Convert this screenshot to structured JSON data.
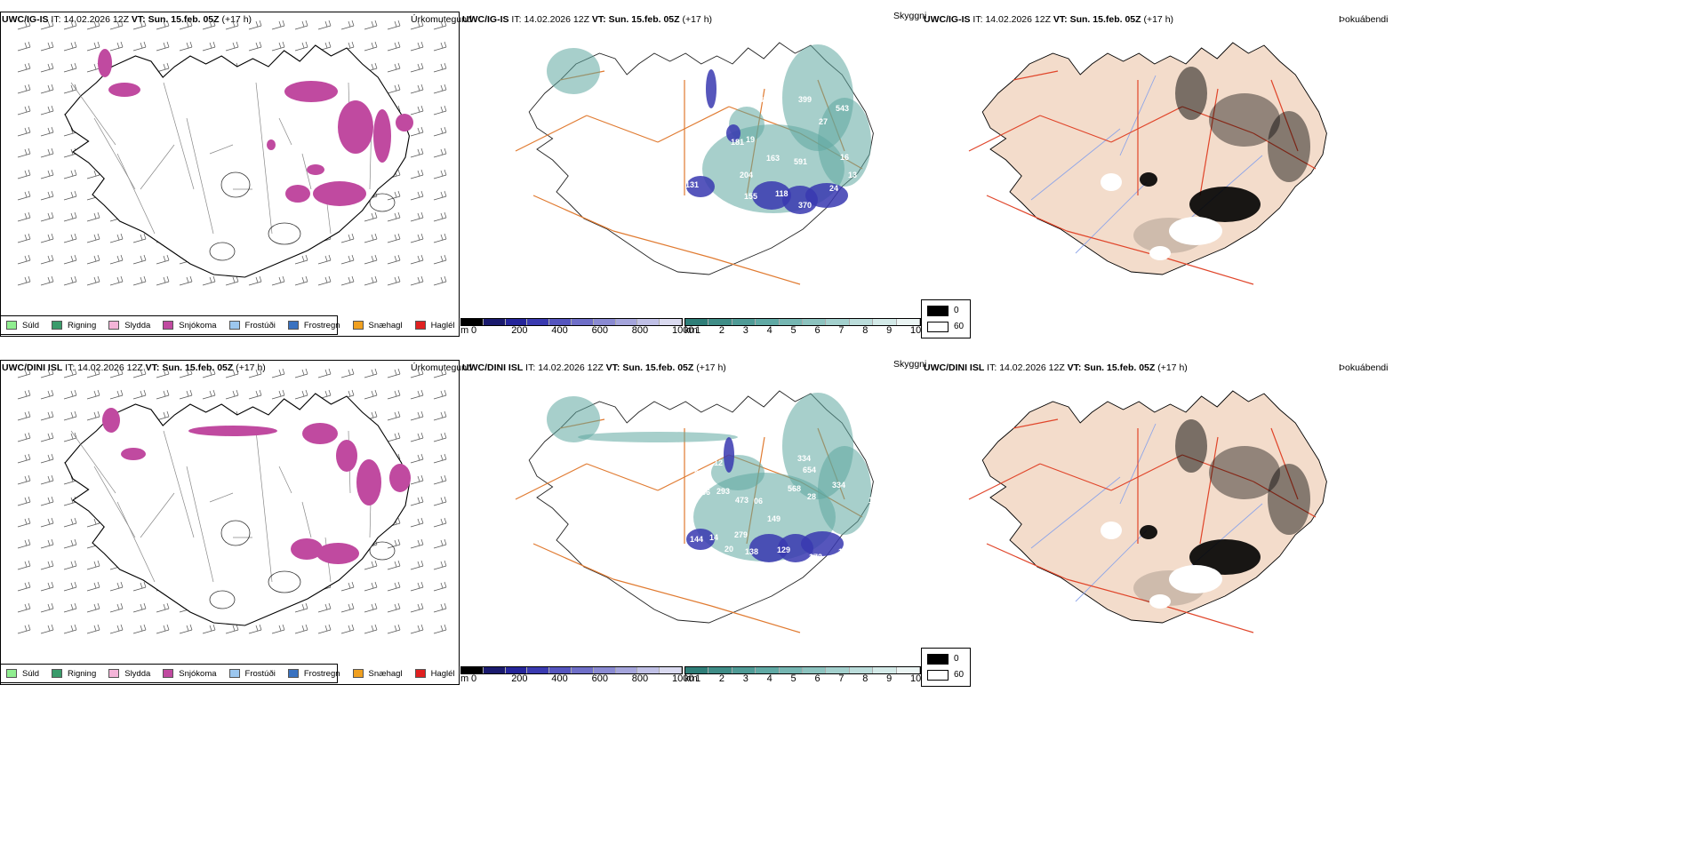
{
  "rows": [
    {
      "model": "UWC/IG-IS",
      "it_label": "IT:",
      "it_value": "14.02.2026 12Z",
      "vt_label": "VT:",
      "vt_value": "Sun. 15.feb. 05Z",
      "lead": "(+17 h)",
      "snow_labels": [
        "131",
        "155",
        "118",
        "370",
        "204",
        "181",
        "19",
        "163",
        "591",
        "399",
        "543",
        "27",
        "575",
        "36",
        "14",
        "24",
        "16",
        "13"
      ],
      "panel_titles": [
        "Úrkomutegund",
        "Skyggni",
        "Þokuábendi"
      ]
    },
    {
      "model": "UWC/DINI ISL",
      "it_label": "IT:",
      "it_value": "14.02.2026 12Z",
      "vt_label": "VT:",
      "vt_value": "Sun. 15.feb. 05Z",
      "lead": "(+17 h)",
      "snow_labels": [
        "144",
        "14",
        "138",
        "129",
        "172",
        "105",
        "293",
        "473",
        "06",
        "149",
        "279",
        "264",
        "334",
        "654",
        "568",
        "28",
        "334",
        "13",
        "466",
        "20",
        "12",
        "5"
      ],
      "panel_titles": [
        "Úrkomutegund",
        "Skyggni",
        "Þokuábendi"
      ]
    }
  ],
  "precip_legend": [
    {
      "label": "Súld",
      "color": "#90ee90"
    },
    {
      "label": "Rigning",
      "color": "#3a9b6b"
    },
    {
      "label": "Slydda",
      "color": "#f4b4d8"
    },
    {
      "label": "Snjókoma",
      "color": "#c04aa0"
    },
    {
      "label": "Frostúði",
      "color": "#9cc7ef"
    },
    {
      "label": "Frostregn",
      "color": "#3a72c0"
    },
    {
      "label": "Snæhagl",
      "color": "#f0a020"
    },
    {
      "label": "Haglél",
      "color": "#e02020"
    }
  ],
  "snow_scale": {
    "unit": "m",
    "ticks": [
      "0",
      "200",
      "400",
      "600",
      "800",
      "1000"
    ]
  },
  "vis_scale": {
    "unit": "km",
    "ticks": [
      "1",
      "2",
      "3",
      "4",
      "5",
      "6",
      "7",
      "8",
      "9",
      "10"
    ]
  },
  "fog_legend": {
    "dark": "0",
    "light": "60"
  },
  "colors": {
    "snow": "#c04aa0",
    "vis": "#5fa8a0",
    "snowdepth": "#3838b0",
    "road": "#e07a30",
    "fogland": "#f3dccb",
    "fogroad": "#e0452a",
    "river": "#8fa6e8"
  }
}
